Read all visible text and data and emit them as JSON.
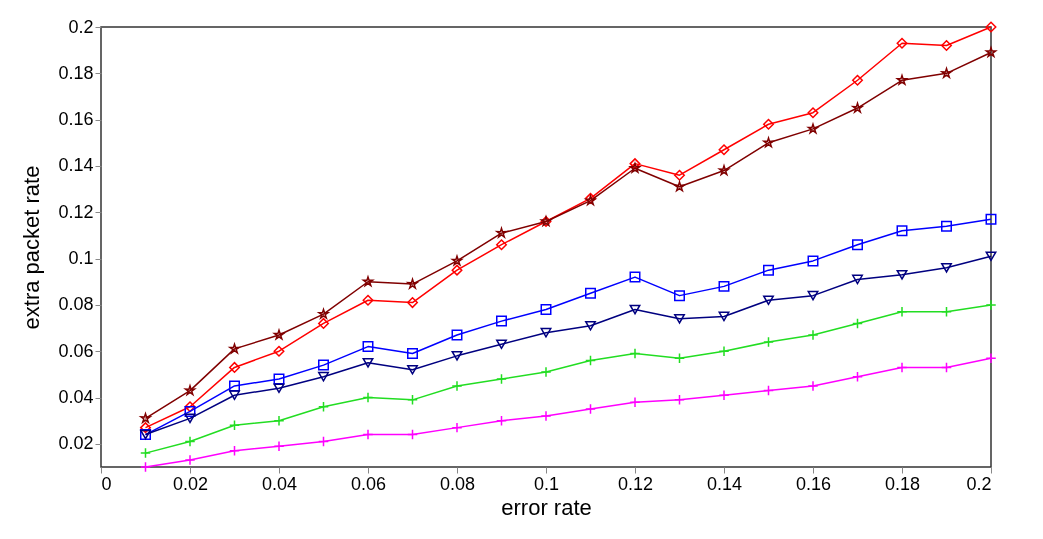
{
  "chart_data": {
    "type": "line",
    "xlabel": "error rate",
    "ylabel": "extra packet rate",
    "x": [
      0.01,
      0.02,
      0.03,
      0.04,
      0.05,
      0.06,
      0.07,
      0.08,
      0.09,
      0.1,
      0.11,
      0.12,
      0.13,
      0.14,
      0.15,
      0.16,
      0.17,
      0.18,
      0.19,
      0.2
    ],
    "xlim": [
      0,
      0.2
    ],
    "xticks": [
      0,
      0.02,
      0.04,
      0.06,
      0.08,
      0.1,
      0.12,
      0.14,
      0.16,
      0.18,
      0.2
    ],
    "ylim": [
      0.01,
      0.2
    ],
    "yticks": [
      0.02,
      0.04,
      0.06,
      0.08,
      0.1,
      0.12,
      0.14,
      0.16,
      0.18,
      0.2
    ],
    "grid": false,
    "line_style": "solid",
    "series": [
      {
        "color": "#ff0000",
        "marker": "diamond",
        "values": [
          0.027,
          0.036,
          0.053,
          0.06,
          0.072,
          0.082,
          0.081,
          0.095,
          0.106,
          0.116,
          0.126,
          0.141,
          0.136,
          0.147,
          0.158,
          0.163,
          0.177,
          0.193,
          0.192,
          0.2
        ]
      },
      {
        "color": "#22dd22",
        "marker": "cross",
        "values": [
          0.016,
          0.021,
          0.028,
          0.03,
          0.036,
          0.04,
          0.039,
          0.045,
          0.048,
          0.051,
          0.056,
          0.059,
          0.057,
          0.06,
          0.064,
          0.067,
          0.072,
          0.077,
          0.077,
          0.08
        ]
      },
      {
        "color": "#0000ff",
        "marker": "square",
        "values": [
          0.024,
          0.034,
          0.045,
          0.048,
          0.054,
          0.062,
          0.059,
          0.067,
          0.073,
          0.078,
          0.085,
          0.092,
          0.084,
          0.088,
          0.095,
          0.099,
          0.106,
          0.112,
          0.114,
          0.117
        ]
      },
      {
        "color": "#ff00ff",
        "marker": "cross",
        "values": [
          0.01,
          0.013,
          0.017,
          0.019,
          0.021,
          0.024,
          0.024,
          0.027,
          0.03,
          0.032,
          0.035,
          0.038,
          0.039,
          0.041,
          0.043,
          0.045,
          0.049,
          0.053,
          0.053,
          0.057
        ]
      },
      {
        "color": "#000080",
        "marker": "triangle",
        "values": [
          0.024,
          0.031,
          0.041,
          0.044,
          0.049,
          0.055,
          0.052,
          0.058,
          0.063,
          0.068,
          0.071,
          0.078,
          0.074,
          0.075,
          0.082,
          0.084,
          0.091,
          0.093,
          0.096,
          0.101
        ]
      },
      {
        "color": "#800000",
        "marker": "star",
        "values": [
          0.031,
          0.043,
          0.061,
          0.067,
          0.076,
          0.09,
          0.089,
          0.099,
          0.111,
          0.116,
          0.125,
          0.139,
          0.131,
          0.138,
          0.15,
          0.156,
          0.165,
          0.177,
          0.18,
          0.189
        ]
      }
    ]
  }
}
